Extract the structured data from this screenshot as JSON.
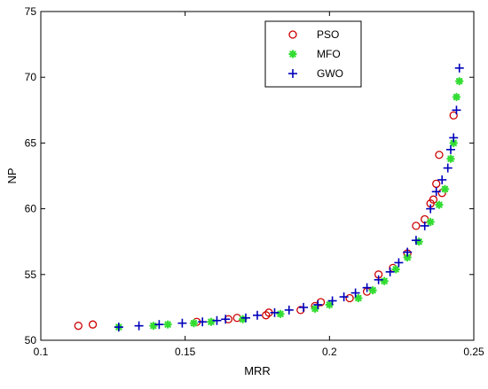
{
  "chart_data": {
    "type": "scatter",
    "xlabel": "MRR",
    "ylabel": "NP",
    "xlim": [
      0.1,
      0.25
    ],
    "ylim": [
      50,
      75
    ],
    "xticks": [
      "0.1",
      "0.15",
      "0.2",
      "0.25"
    ],
    "yticks": [
      "50",
      "55",
      "60",
      "65",
      "70",
      "75"
    ],
    "grid": false,
    "legend_position": "top-right",
    "series": [
      {
        "name": "PSO",
        "marker": "circle",
        "color": "#cc0000",
        "x": [
          0.113,
          0.118,
          0.154,
          0.165,
          0.168,
          0.178,
          0.179,
          0.19,
          0.195,
          0.197,
          0.207,
          0.213,
          0.217,
          0.222,
          0.227,
          0.23,
          0.233,
          0.235,
          0.236,
          0.237,
          0.238,
          0.239,
          0.243
        ],
        "y": [
          51.1,
          51.2,
          51.4,
          51.6,
          51.7,
          51.9,
          52.1,
          52.3,
          52.6,
          52.9,
          53.2,
          53.7,
          55.0,
          55.5,
          56.6,
          58.7,
          59.2,
          60.4,
          60.7,
          61.9,
          64.1,
          61.2,
          67.1
        ]
      },
      {
        "name": "MFO",
        "marker": "asterisk",
        "color": "#33dd33",
        "x": [
          0.127,
          0.139,
          0.144,
          0.153,
          0.159,
          0.17,
          0.183,
          0.195,
          0.2,
          0.21,
          0.215,
          0.219,
          0.223,
          0.227,
          0.231,
          0.235,
          0.238,
          0.24,
          0.242,
          0.243,
          0.244,
          0.245
        ],
        "y": [
          51.0,
          51.1,
          51.2,
          51.3,
          51.4,
          51.6,
          52.0,
          52.4,
          52.7,
          53.2,
          53.8,
          54.5,
          55.4,
          56.3,
          57.5,
          59.0,
          60.3,
          61.5,
          63.8,
          65.0,
          68.5,
          69.7
        ]
      },
      {
        "name": "GWO",
        "marker": "plus",
        "color": "#0000bb",
        "x": [
          0.127,
          0.134,
          0.141,
          0.149,
          0.156,
          0.161,
          0.164,
          0.171,
          0.175,
          0.181,
          0.186,
          0.191,
          0.196,
          0.201,
          0.205,
          0.209,
          0.213,
          0.217,
          0.221,
          0.224,
          0.227,
          0.23,
          0.233,
          0.235,
          0.237,
          0.239,
          0.241,
          0.242,
          0.243,
          0.244,
          0.245
        ],
        "y": [
          51.0,
          51.1,
          51.2,
          51.3,
          51.4,
          51.5,
          51.6,
          51.7,
          51.9,
          52.1,
          52.3,
          52.5,
          52.7,
          53.0,
          53.3,
          53.6,
          54.0,
          54.6,
          55.2,
          55.9,
          56.7,
          57.6,
          58.7,
          60.0,
          61.3,
          62.2,
          63.1,
          64.5,
          65.4,
          67.5,
          70.7
        ]
      }
    ]
  }
}
